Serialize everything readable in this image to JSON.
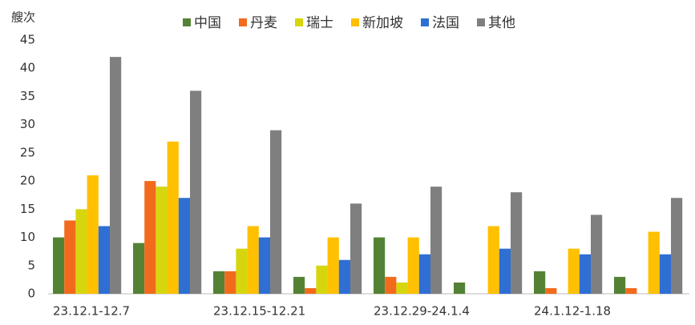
{
  "chart_data": {
    "type": "bar",
    "y_label": "艘次",
    "categories": [
      "23.12.1-12.7",
      null,
      "23.12.15-12.21",
      null,
      "23.12.29-24.1.4",
      null,
      "24.1.12-1.18",
      null
    ],
    "series": [
      {
        "name": "中国",
        "color": "#548235",
        "values": [
          10,
          9,
          4,
          3,
          10,
          2,
          4,
          3
        ]
      },
      {
        "name": "丹麦",
        "color": "#f26b1d",
        "values": [
          13,
          20,
          4,
          1,
          3,
          0,
          1,
          1
        ]
      },
      {
        "name": "瑞士",
        "color": "#d6d60e",
        "values": [
          15,
          19,
          8,
          5,
          2,
          0,
          0,
          0
        ]
      },
      {
        "name": "新加坡",
        "color": "#ffc000",
        "values": [
          21,
          27,
          12,
          10,
          10,
          12,
          8,
          11
        ]
      },
      {
        "name": "法国",
        "color": "#2f6fd4",
        "values": [
          12,
          17,
          10,
          6,
          7,
          8,
          7,
          7
        ]
      },
      {
        "name": "其他",
        "color": "#7f7f7f",
        "values": [
          42,
          36,
          29,
          16,
          19,
          18,
          14,
          17
        ]
      }
    ],
    "ylim": [
      0,
      45
    ],
    "yticks": [
      0,
      5,
      10,
      15,
      20,
      25,
      30,
      35,
      40,
      45
    ],
    "grid": false
  }
}
